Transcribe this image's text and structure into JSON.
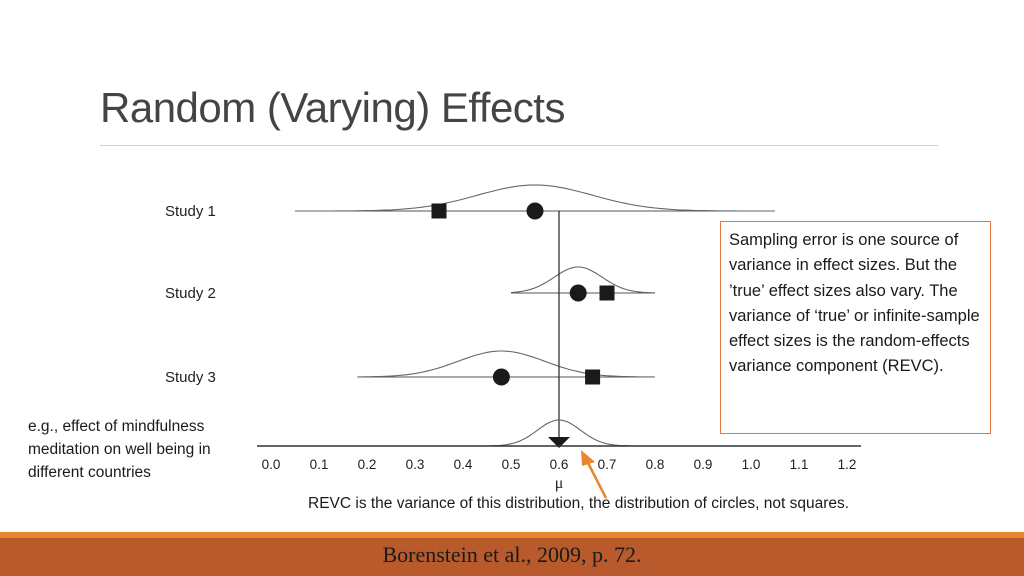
{
  "title": "Random (Varying) Effects",
  "note_box": "Sampling error is one source of variance in effect sizes. But the ’true’ effect sizes also vary.  The variance of ‘true’ or infinite-sample effect sizes is the random-effects variance component (REVC).",
  "left_note": "e.g., effect of mindfulness meditation on well being in different countries",
  "revc_caption": "REVC is the variance of this distribution, the distribution of circles, not squares.",
  "footer": "Borenstein et al., 2009, p. 72.",
  "colors": {
    "accent": "#e8862e",
    "footer_bg": "#b85a2c",
    "box_border": "#e07b3a",
    "arrow": "#e8862e"
  },
  "chart_data": {
    "type": "forest",
    "xlim": [
      0.0,
      1.2
    ],
    "ticks": [
      "0.0",
      "0.1",
      "0.2",
      "0.3",
      "0.4",
      "0.5",
      "0.6",
      "0.7",
      "0.8",
      "0.9",
      "1.0",
      "1.1",
      "1.2"
    ],
    "xlabel": "μ",
    "mu": 0.6,
    "studies": [
      {
        "label": "Study 1",
        "true_effect": 0.55,
        "observed": 0.35,
        "dist_center": 0.55,
        "dist_sd": 0.12,
        "dist_range": [
          0.05,
          1.05
        ]
      },
      {
        "label": "Study 2",
        "true_effect": 0.64,
        "observed": 0.7,
        "dist_center": 0.64,
        "dist_sd": 0.05,
        "dist_range": [
          0.5,
          0.8
        ]
      },
      {
        "label": "Study 3",
        "true_effect": 0.48,
        "observed": 0.67,
        "dist_center": 0.48,
        "dist_sd": 0.09,
        "dist_range": [
          0.18,
          0.8
        ]
      }
    ],
    "overall": {
      "center": 0.6,
      "sd": 0.045,
      "range": [
        0.38,
        0.8
      ]
    }
  }
}
